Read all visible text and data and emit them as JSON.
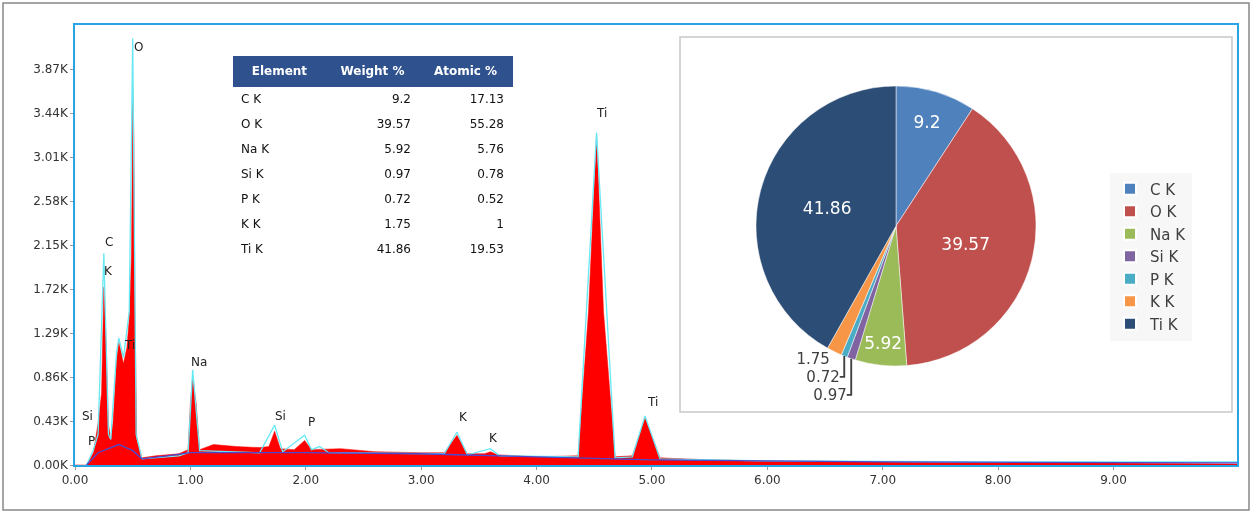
{
  "chart_data": [
    {
      "type": "area",
      "xlim": [
        0,
        10.07
      ],
      "ylim": [
        0,
        4300
      ],
      "xticks": [
        {
          "value": 0,
          "label": "0.00"
        },
        {
          "value": 1,
          "label": "1.00"
        },
        {
          "value": 2,
          "label": "2.00"
        },
        {
          "value": 3,
          "label": "3.00"
        },
        {
          "value": 4,
          "label": "4.00"
        },
        {
          "value": 5,
          "label": "5.00"
        },
        {
          "value": 6,
          "label": "6.00"
        },
        {
          "value": 7,
          "label": "7.00"
        },
        {
          "value": 8,
          "label": "8.00"
        },
        {
          "value": 9,
          "label": "9.00"
        }
      ],
      "yticks": [
        {
          "value": 0,
          "label": "0.00K"
        },
        {
          "value": 430,
          "label": "0.43K"
        },
        {
          "value": 860,
          "label": "0.86K"
        },
        {
          "value": 1290,
          "label": "1.29K"
        },
        {
          "value": 1720,
          "label": "1.72K"
        },
        {
          "value": 2150,
          "label": "2.15K"
        },
        {
          "value": 2580,
          "label": "2.58K"
        },
        {
          "value": 3010,
          "label": "3.01K"
        },
        {
          "value": 3440,
          "label": "3.44K"
        },
        {
          "value": 3870,
          "label": "3.87K"
        }
      ],
      "grid": false,
      "legend": false,
      "series": [
        {
          "type": "area",
          "color": "#ff0000",
          "x": [
            0.0,
            0.1,
            0.16,
            0.2,
            0.23,
            0.25,
            0.27,
            0.29,
            0.31,
            0.33,
            0.36,
            0.38,
            0.4,
            0.42,
            0.45,
            0.47,
            0.49,
            0.5,
            0.51,
            0.52,
            0.535,
            0.58,
            0.7,
            0.9,
            0.98,
            1.0,
            1.02,
            1.05,
            1.08,
            1.2,
            1.4,
            1.6,
            1.68,
            1.73,
            1.78,
            1.9,
            1.99,
            2.05,
            2.3,
            2.6,
            3.0,
            3.2,
            3.31,
            3.4,
            3.55,
            3.6,
            3.66,
            4.0,
            4.36,
            4.45,
            4.52,
            4.58,
            4.68,
            4.83,
            4.94,
            5.07,
            5.5,
            6.0,
            7.0,
            8.0,
            9.0,
            10.07
          ],
          "values": [
            0,
            0,
            120,
            410,
            700,
            1740,
            1200,
            400,
            240,
            420,
            1020,
            1200,
            1100,
            990,
            1150,
            1430,
            2080,
            3700,
            3200,
            1500,
            250,
            70,
            90,
            110,
            150,
            600,
            860,
            600,
            150,
            200,
            180,
            170,
            180,
            330,
            160,
            150,
            240,
            150,
            160,
            130,
            120,
            120,
            290,
            110,
            110,
            130,
            100,
            80,
            90,
            1500,
            3230,
            1500,
            80,
            90,
            460,
            70,
            50,
            40,
            30,
            20,
            20,
            10
          ]
        },
        {
          "type": "line",
          "color": "#66e8f5",
          "x": [
            0.1,
            0.16,
            0.2,
            0.25,
            0.29,
            0.31,
            0.36,
            0.38,
            0.42,
            0.47,
            0.5,
            0.53,
            0.58,
            0.9,
            0.98,
            1.02,
            1.08,
            1.6,
            1.73,
            1.8,
            1.99,
            2.05,
            2.12,
            2.2,
            3.2,
            3.31,
            3.4,
            3.6,
            3.68,
            4.36,
            4.52,
            4.68,
            4.83,
            4.94,
            5.07,
            6,
            8,
            10.07
          ],
          "values": [
            0,
            150,
            300,
            2070,
            300,
            250,
            1100,
            1240,
            1050,
            1500,
            4170,
            300,
            60,
            90,
            120,
            930,
            140,
            120,
            390,
            130,
            290,
            150,
            180,
            120,
            110,
            320,
            100,
            160,
            90,
            80,
            3250,
            70,
            80,
            480,
            60,
            40,
            30,
            30
          ]
        },
        {
          "type": "line",
          "color": "#4a4ad0",
          "x": [
            0.1,
            0.2,
            0.38,
            0.5,
            0.58,
            0.8,
            1.0,
            2.0,
            3.0,
            3.31,
            4.0,
            5.0,
            7,
            10.07
          ],
          "values": [
            0,
            120,
            200,
            140,
            60,
            90,
            120,
            120,
            110,
            100,
            80,
            50,
            30,
            20
          ]
        }
      ],
      "annotations": [
        {
          "text": "O",
          "x": 0.5,
          "y": 4170
        },
        {
          "text": "C",
          "x": 0.25,
          "y": 2070
        },
        {
          "text": "K",
          "x": 0.25,
          "y": 2070
        },
        {
          "text": "Ti",
          "x": 0.38,
          "y": 1240
        },
        {
          "text": "Na",
          "x": 1.02,
          "y": 930
        },
        {
          "text": "Si",
          "x": 0.16,
          "y": 150
        },
        {
          "text": "P",
          "x": 0.16,
          "y": 150
        },
        {
          "text": "Si",
          "x": 1.73,
          "y": 390
        },
        {
          "text": "P",
          "x": 1.99,
          "y": 290
        },
        {
          "text": "K",
          "x": 3.31,
          "y": 320
        },
        {
          "text": "K",
          "x": 3.6,
          "y": 160
        },
        {
          "text": "Ti",
          "x": 4.52,
          "y": 3250
        },
        {
          "text": "Ti",
          "x": 4.94,
          "y": 480
        }
      ]
    },
    {
      "type": "other",
      "xlabel": "Element",
      "categories": [
        "C K",
        "O K",
        "Na K",
        "Si K",
        "P K",
        "K K",
        "Ti K"
      ],
      "data_labels": true,
      "series": [
        {
          "name": "Weight %",
          "values": [
            9.2,
            39.57,
            5.92,
            0.97,
            0.72,
            1.75,
            41.86
          ]
        },
        {
          "name": "Atomic %",
          "values": [
            17.13,
            55.28,
            5.76,
            0.78,
            0.52,
            1,
            19.53
          ]
        }
      ]
    },
    {
      "type": "pie",
      "categories": [
        "C K",
        "O K",
        "Na K",
        "Si K",
        "P K",
        "K K",
        "Ti K"
      ],
      "values": [
        9.2,
        39.57,
        5.92,
        0.97,
        0.72,
        1.75,
        41.86
      ],
      "colors": [
        "#4f81bd",
        "#c0504d",
        "#9bbb59",
        "#8064a2",
        "#4bacc6",
        "#f79646",
        "#2c4d75"
      ],
      "data_labels": true,
      "legend": "right"
    }
  ]
}
